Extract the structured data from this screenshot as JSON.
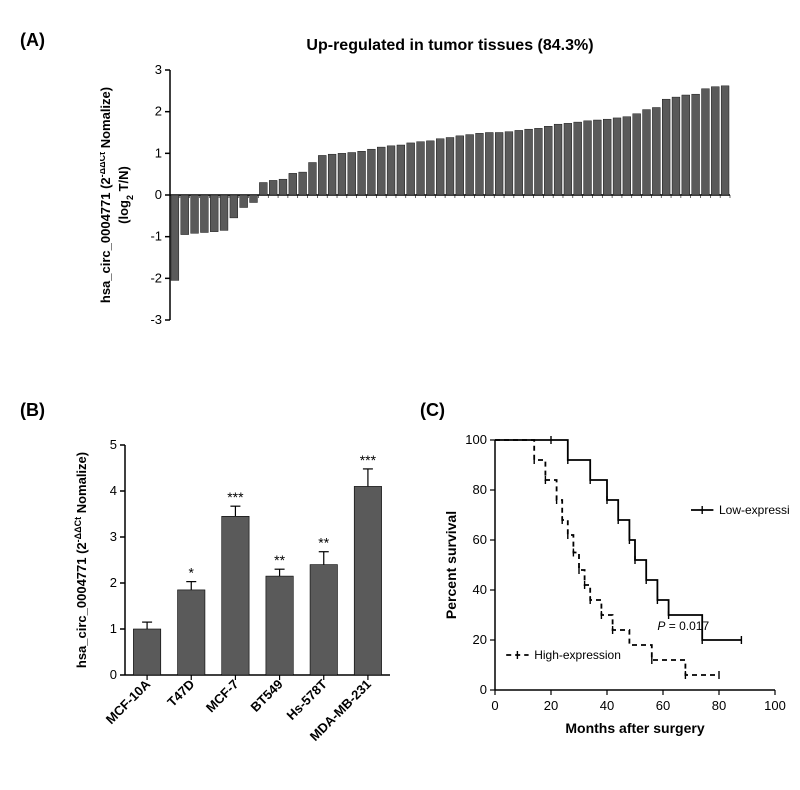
{
  "panelA": {
    "label": "(A)",
    "title": "Up-regulated in tumor tissues (84.3%)",
    "ylabel": "hsa_circ_0004771 (2^-ΔΔCt Nomalize)\n(log₂ T/N)",
    "ylim": [
      -3,
      3
    ],
    "ytick_step": 1,
    "bar_color": "#5a5a5a",
    "values": [
      -2.05,
      -0.95,
      -0.92,
      -0.9,
      -0.88,
      -0.85,
      -0.55,
      -0.3,
      -0.18,
      0.3,
      0.35,
      0.38,
      0.52,
      0.55,
      0.78,
      0.95,
      0.98,
      1.0,
      1.02,
      1.05,
      1.1,
      1.15,
      1.18,
      1.2,
      1.25,
      1.28,
      1.3,
      1.35,
      1.38,
      1.42,
      1.45,
      1.48,
      1.5,
      1.5,
      1.52,
      1.55,
      1.58,
      1.6,
      1.65,
      1.7,
      1.72,
      1.75,
      1.78,
      1.8,
      1.82,
      1.85,
      1.88,
      1.95,
      2.05,
      2.1,
      2.3,
      2.35,
      2.4,
      2.42,
      2.55,
      2.6,
      2.62
    ]
  },
  "panelB": {
    "label": "(B)",
    "ylabel": "hsa_circ_0004771 (2^-ΔΔCt Nomalize)",
    "ylim": [
      0,
      5
    ],
    "ytick_step": 1,
    "bar_color": "#5a5a5a",
    "categories": [
      "MCF-10A",
      "T47D",
      "MCF-7",
      "BT549",
      "Hs-578T",
      "MDA-MB-231"
    ],
    "values": [
      1.0,
      1.85,
      3.45,
      2.15,
      2.4,
      4.1
    ],
    "errors": [
      0.15,
      0.18,
      0.22,
      0.15,
      0.28,
      0.38
    ],
    "sig": [
      "",
      "*",
      "***",
      "**",
      "**",
      "***"
    ]
  },
  "panelC": {
    "label": "(C)",
    "xlabel": "Months after surgery",
    "ylabel": "Percent survival",
    "xlim": [
      0,
      100
    ],
    "ylim": [
      0,
      100
    ],
    "xtick_step": 20,
    "ytick_step": 20,
    "p_text": "P = 0.017",
    "low_label": "Low-expression",
    "high_label": "High-expression",
    "low_curve": [
      [
        0,
        100
      ],
      [
        20,
        100
      ],
      [
        20,
        100
      ],
      [
        26,
        100
      ],
      [
        26,
        92
      ],
      [
        34,
        92
      ],
      [
        34,
        84
      ],
      [
        40,
        84
      ],
      [
        40,
        76
      ],
      [
        44,
        76
      ],
      [
        44,
        68
      ],
      [
        48,
        68
      ],
      [
        48,
        60
      ],
      [
        50,
        60
      ],
      [
        50,
        52
      ],
      [
        54,
        52
      ],
      [
        54,
        44
      ],
      [
        58,
        44
      ],
      [
        58,
        36
      ],
      [
        62,
        36
      ],
      [
        62,
        30
      ],
      [
        74,
        30
      ],
      [
        74,
        20
      ],
      [
        88,
        20
      ]
    ],
    "low_ticks_x": [
      20,
      26,
      34,
      40,
      44,
      48,
      50,
      54,
      58,
      62,
      74,
      88
    ],
    "high_curve": [
      [
        0,
        100
      ],
      [
        14,
        100
      ],
      [
        14,
        92
      ],
      [
        18,
        92
      ],
      [
        18,
        84
      ],
      [
        22,
        84
      ],
      [
        22,
        76
      ],
      [
        24,
        76
      ],
      [
        24,
        68
      ],
      [
        26,
        68
      ],
      [
        26,
        62
      ],
      [
        28,
        62
      ],
      [
        28,
        55
      ],
      [
        30,
        55
      ],
      [
        30,
        48
      ],
      [
        32,
        48
      ],
      [
        32,
        42
      ],
      [
        34,
        42
      ],
      [
        34,
        36
      ],
      [
        38,
        36
      ],
      [
        38,
        30
      ],
      [
        42,
        30
      ],
      [
        42,
        24
      ],
      [
        48,
        24
      ],
      [
        48,
        18
      ],
      [
        56,
        18
      ],
      [
        56,
        12
      ],
      [
        68,
        12
      ],
      [
        68,
        6
      ],
      [
        80,
        6
      ]
    ],
    "high_ticks_x": [
      14,
      18,
      22,
      24,
      26,
      28,
      30,
      32,
      34,
      38,
      42,
      56,
      68,
      80
    ]
  }
}
